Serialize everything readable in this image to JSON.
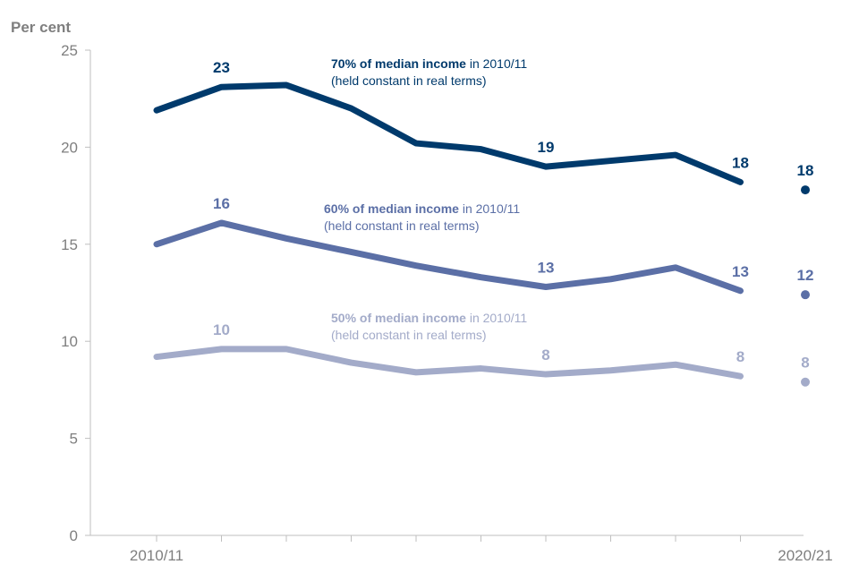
{
  "chart_data": {
    "type": "line",
    "ylabel": "Per cent",
    "ylim": [
      0,
      25
    ],
    "yticks": [
      0,
      5,
      10,
      15,
      20,
      25
    ],
    "x_tick_labels": {
      "first": "2010/11",
      "last": "2020/21"
    },
    "grid": false,
    "series": [
      {
        "name": "70% of median income",
        "annotation_bold": "70% of median income",
        "annotation_rest": " in 2010/11",
        "annotation_line2": "(held constant in real terms)",
        "color": "#003a6c",
        "values": [
          21.9,
          23.1,
          23.2,
          22.0,
          20.2,
          19.9,
          19.0,
          19.3,
          19.6,
          18.2
        ],
        "final_point": 17.8,
        "data_labels": [
          {
            "index": 1,
            "text": "23"
          },
          {
            "index": 6,
            "text": "19"
          },
          {
            "index": 9,
            "text": "18"
          },
          {
            "index": 10,
            "text": "18"
          }
        ]
      },
      {
        "name": "60% of median income",
        "annotation_bold": "60% of median income",
        "annotation_rest": " in 2010/11",
        "annotation_line2": "(held constant in real terms)",
        "color": "#5b6fa6",
        "values": [
          15.0,
          16.1,
          15.3,
          14.6,
          13.9,
          13.3,
          12.8,
          13.2,
          13.8,
          12.6
        ],
        "final_point": 12.4,
        "data_labels": [
          {
            "index": 1,
            "text": "16"
          },
          {
            "index": 6,
            "text": "13"
          },
          {
            "index": 9,
            "text": "13"
          },
          {
            "index": 10,
            "text": "12"
          }
        ]
      },
      {
        "name": "50% of median income",
        "annotation_bold": "50% of median income",
        "annotation_rest": " in 2010/11",
        "annotation_line2": "(held constant in real terms)",
        "color": "#a3abc9",
        "values": [
          9.2,
          9.6,
          9.6,
          8.9,
          8.4,
          8.6,
          8.3,
          8.5,
          8.8,
          8.2
        ],
        "final_point": 7.9,
        "data_labels": [
          {
            "index": 1,
            "text": "10"
          },
          {
            "index": 6,
            "text": "8"
          },
          {
            "index": 9,
            "text": "8"
          },
          {
            "index": 10,
            "text": "8"
          }
        ]
      }
    ]
  }
}
